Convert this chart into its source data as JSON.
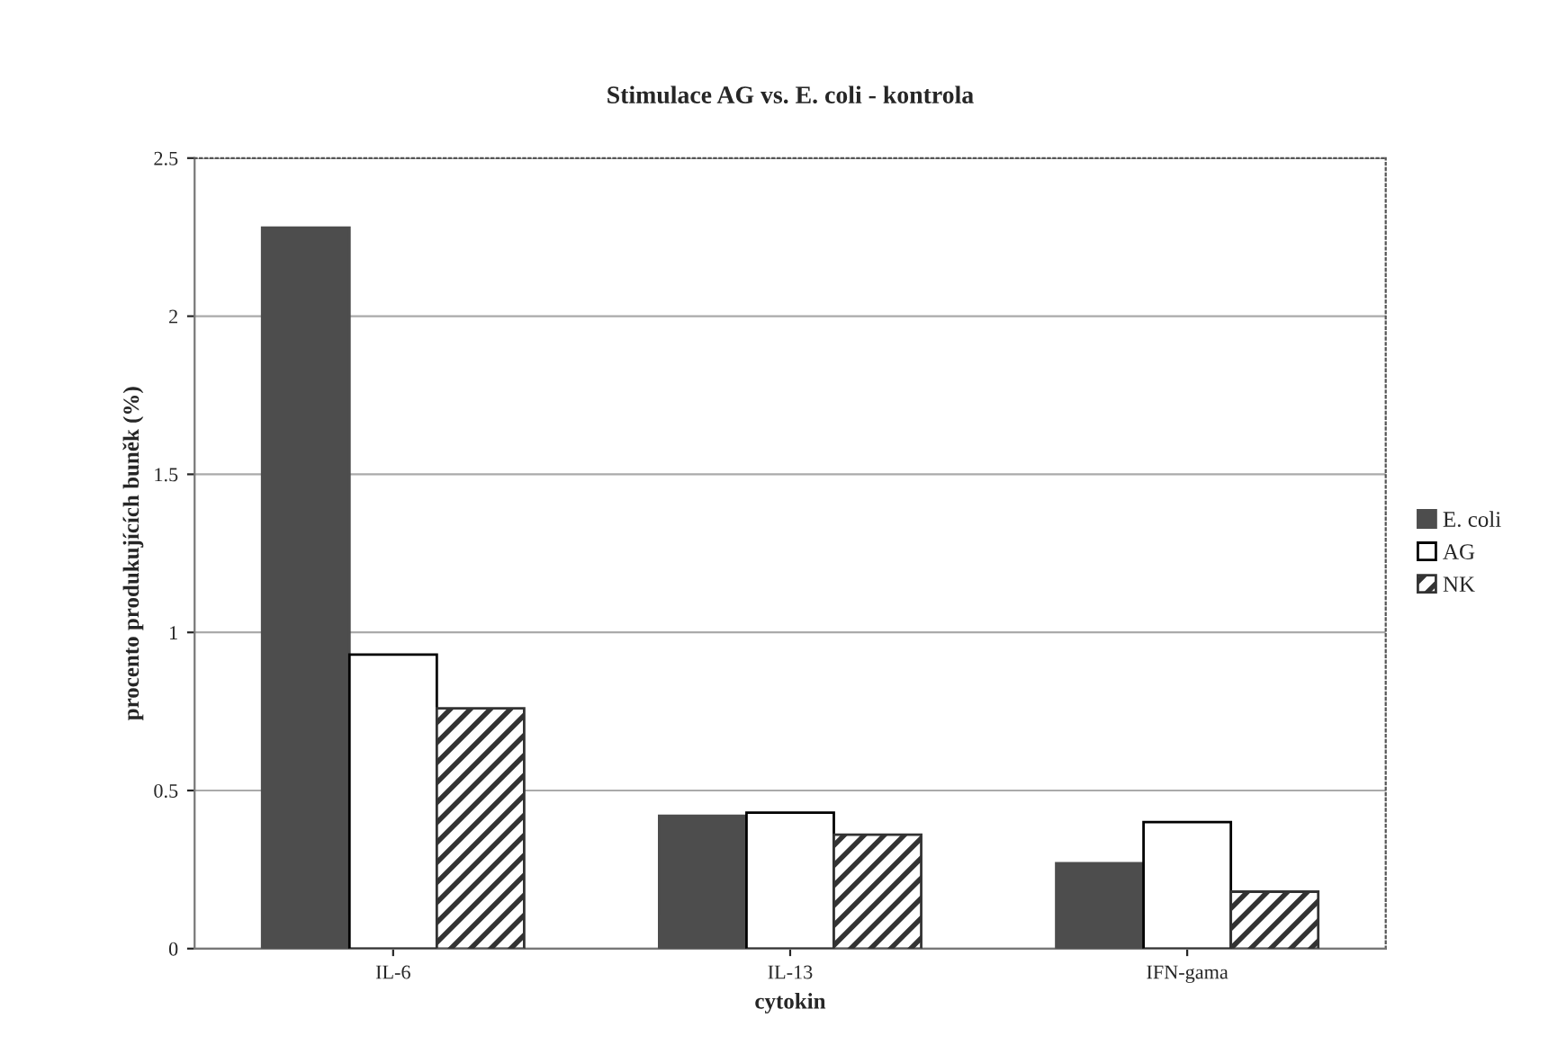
{
  "chart_data": {
    "type": "bar",
    "title": "Stimulace AG vs. E. coli - kontrola",
    "xlabel": "cytokin",
    "ylabel": "procento produkujících buněk (%)",
    "categories": [
      "IL-6",
      "IL-13",
      "IFN-gama"
    ],
    "series": [
      {
        "name": "E. coli",
        "color": "#4d4d4d",
        "values": [
          2.28,
          0.42,
          0.27
        ]
      },
      {
        "name": "AG",
        "color": "#ffffff",
        "values": [
          0.93,
          0.43,
          0.4
        ]
      },
      {
        "name": "NK",
        "color": "#333333",
        "values": [
          0.76,
          0.36,
          0.18
        ]
      }
    ],
    "ylim": [
      0,
      2.5
    ],
    "yticks": [
      0,
      0.5,
      1,
      1.5,
      2,
      2.5
    ],
    "grid": "y",
    "legend": "right"
  }
}
